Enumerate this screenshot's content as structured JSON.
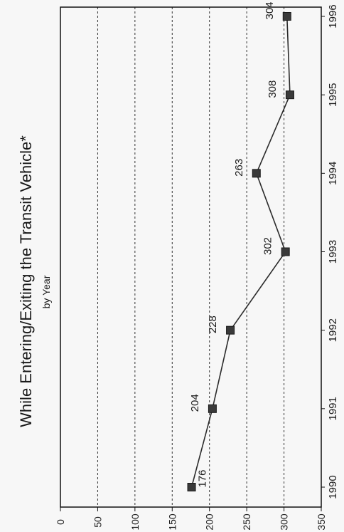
{
  "chart_data": {
    "type": "line",
    "title": "While Entering/Exiting the Transit Vehicle*",
    "subtitle": "by Year",
    "xlabel": "",
    "ylabel": "",
    "x": [
      "1990",
      "1991",
      "1992",
      "1993",
      "1994",
      "1995",
      "1996"
    ],
    "series": [
      {
        "values": [
          176,
          204,
          228,
          302,
          263,
          308,
          304
        ]
      }
    ],
    "y_ticks": [
      0,
      50,
      100,
      150,
      200,
      250,
      300,
      350
    ],
    "ylim": [
      0,
      350
    ],
    "grid": true,
    "legend": "none",
    "orientation": "rotated 90° clockwise",
    "colors": {
      "line": "#2b2b2b",
      "marker": "#3a3a3a",
      "grid": "#333333",
      "axis": "#111111"
    }
  }
}
